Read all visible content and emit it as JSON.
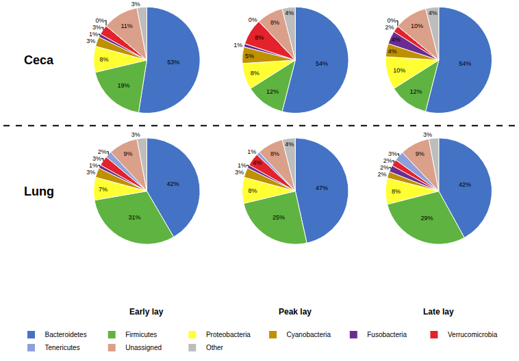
{
  "chart_data": {
    "type": "pie",
    "categories": [
      "Bacteroidetes",
      "Firmicutes",
      "Proteobacteria",
      "Cyanobacteria",
      "Fusobacteria",
      "Verrucomicrobia",
      "Tenericutes",
      "Unassigned",
      "Other"
    ],
    "colors": [
      "#4472c4",
      "#5fb341",
      "#ffff33",
      "#bf9000",
      "#6a2c91",
      "#e3222b",
      "#8e9fdb",
      "#dba08a",
      "#bdbdbd"
    ],
    "legend": "bottom",
    "data_labels": true,
    "columns": [
      "Early lay",
      "Peak lay",
      "Late lay"
    ],
    "rows": [
      {
        "label": "Ceca",
        "pies": [
          {
            "values": [
              53,
              19,
              8,
              3,
              1,
              3,
              0,
              11,
              3
            ],
            "value_labels": [
              "53%",
              "19%",
              "8%",
              "3%",
              "1%",
              "3%",
              "0%",
              "11%",
              "3%"
            ]
          },
          {
            "values": [
              54,
              12,
              8,
              5,
              1,
              8,
              0,
              8,
              4
            ],
            "value_labels": [
              "54%",
              "12%",
              "8%",
              "5%",
              "1%",
              "8%",
              "0%",
              "8%",
              "4%"
            ]
          },
          {
            "values": [
              54,
              12,
              10,
              4,
              4,
              2,
              0,
              10,
              4
            ],
            "value_labels": [
              "54%",
              "12%",
              "10%",
              "4%",
              "4%",
              "2%",
              "0%",
              "10%",
              "4%"
            ]
          }
        ]
      },
      {
        "label": "Lung",
        "pies": [
          {
            "values": [
              42,
              31,
              7,
              3,
              1,
              3,
              2,
              9,
              3
            ],
            "value_labels": [
              "42%",
              "31%",
              "7%",
              "3%",
              "1%",
              "3%",
              "2%",
              "9%",
              "3%"
            ]
          },
          {
            "values": [
              47,
              25,
              8,
              3,
              1,
              4,
              1,
              8,
              4
            ],
            "value_labels": [
              "47%",
              "25%",
              "8%",
              "3%",
              "1%",
              "4%",
              "1%",
              "8%",
              "4%"
            ]
          },
          {
            "values": [
              42,
              29,
              8,
              2,
              2,
              2,
              3,
              9,
              3
            ],
            "value_labels": [
              "42%",
              "29%",
              "8%",
              "2%",
              "2%",
              "2%",
              "3%",
              "9%",
              "3%"
            ]
          }
        ]
      }
    ]
  }
}
